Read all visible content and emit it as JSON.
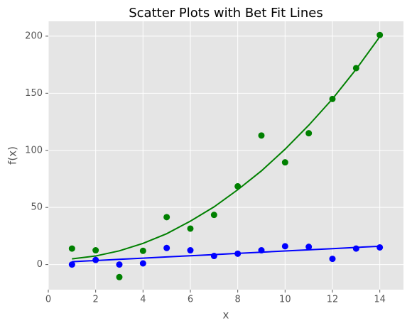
{
  "chart_data": {
    "type": "scatter",
    "title": "Scatter Plots with Bet Fit Lines",
    "x_label": "x",
    "y_label": "f(x)",
    "x": [
      1,
      2,
      3,
      4,
      5,
      6,
      7,
      8,
      9,
      10,
      11,
      12,
      13,
      14
    ],
    "series": [
      {
        "type": "scatter",
        "color": "#008000",
        "values": [
          14,
          12.5,
          -11,
          12,
          41.5,
          31.5,
          43.5,
          68.5,
          113,
          89.5,
          115,
          145,
          172,
          201
        ]
      },
      {
        "type": "scatter",
        "color": "#0000ff",
        "values": [
          0,
          4,
          0,
          1,
          14.5,
          12.5,
          7.5,
          9.5,
          12.5,
          16,
          15.5,
          5,
          14,
          15
        ]
      },
      {
        "type": "line",
        "color": "#008000",
        "values": [
          5,
          7.5,
          12,
          18.5,
          27,
          38,
          50.5,
          65.5,
          82,
          101,
          122,
          145,
          171,
          199.5
        ]
      },
      {
        "type": "line",
        "color": "#0000ff",
        "values": [
          2.5,
          3.5,
          4.6,
          5.6,
          6.7,
          7.7,
          8.7,
          9.8,
          10.8,
          11.9,
          12.9,
          13.9,
          15,
          16
        ]
      }
    ],
    "xlim": [
      0,
      15
    ],
    "xticks": [
      0,
      2,
      4,
      6,
      8,
      10,
      12,
      14
    ],
    "ylim": [
      -22,
      213
    ],
    "yticks": [
      0,
      50,
      100,
      150,
      200
    ],
    "grid": true
  }
}
